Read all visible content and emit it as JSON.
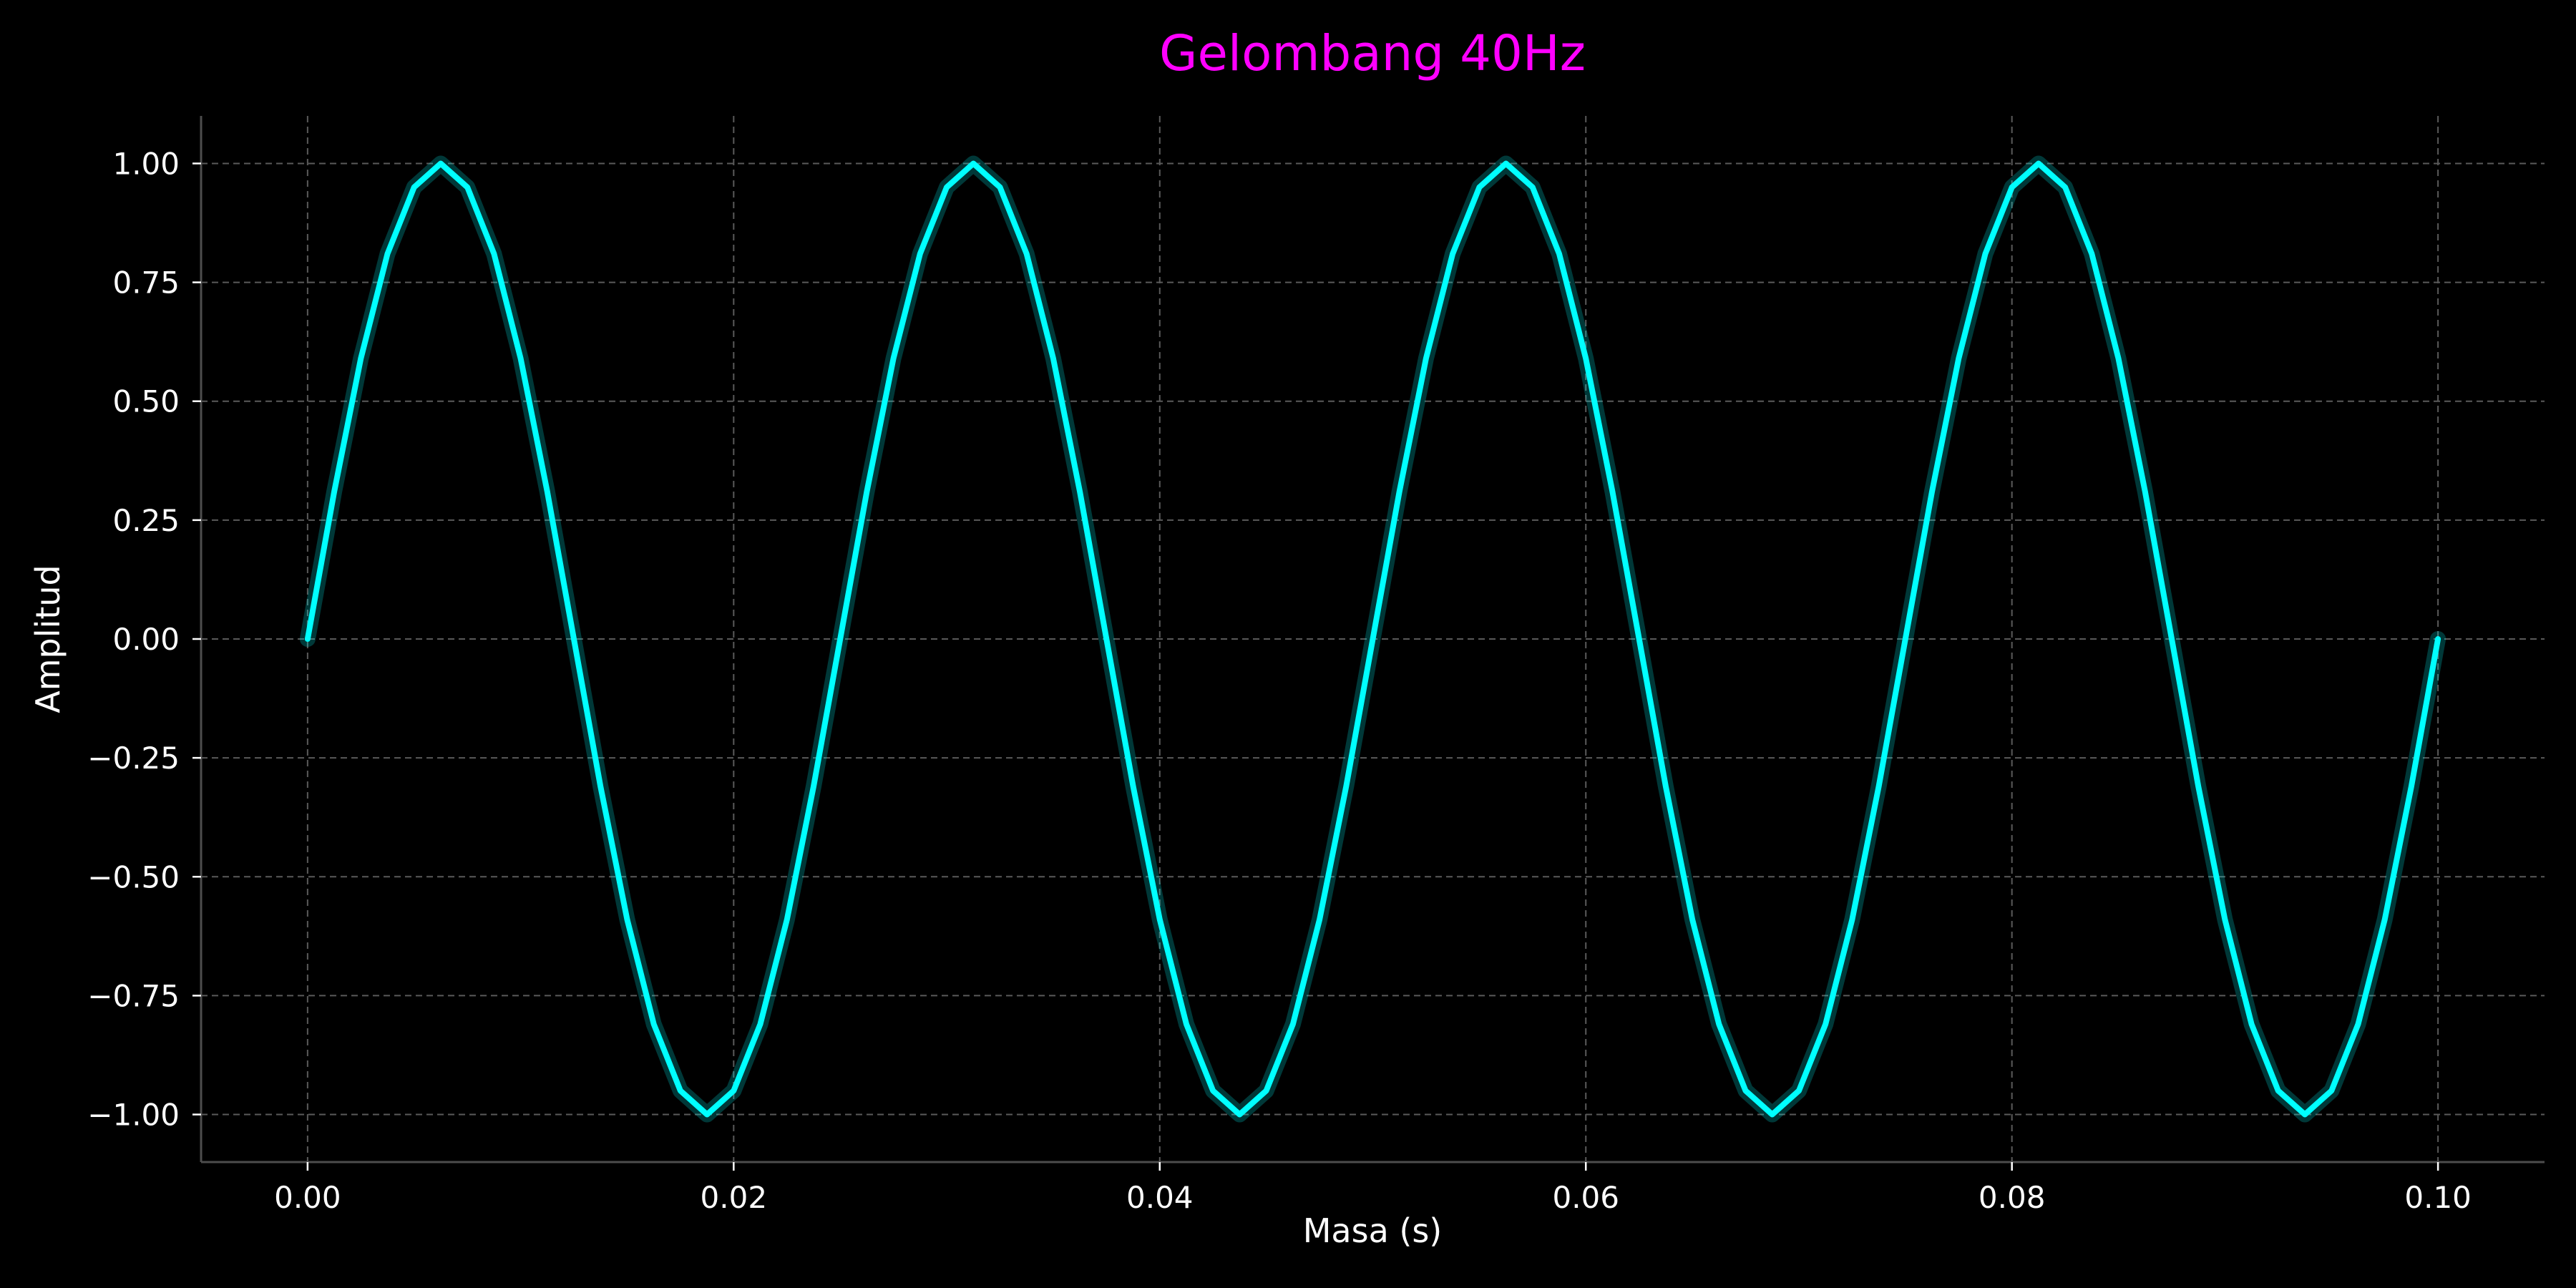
{
  "chart_data": {
    "type": "line",
    "title": "Gelombang 40Hz",
    "xlabel": "Masa (s)",
    "ylabel": "Amplitud",
    "xlim": [
      -0.005,
      0.105
    ],
    "ylim": [
      -1.1,
      1.1
    ],
    "x_ticks": [
      0.0,
      0.02,
      0.04,
      0.06,
      0.08,
      0.1
    ],
    "x_tick_labels": [
      "0.00",
      "0.02",
      "0.04",
      "0.06",
      "0.08",
      "0.10"
    ],
    "y_ticks": [
      1.0,
      0.75,
      0.5,
      0.25,
      0.0,
      -0.25,
      -0.5,
      -0.75,
      -1.0
    ],
    "y_tick_labels": [
      "1.00",
      "0.75",
      "0.50",
      "0.25",
      "0.00",
      "−0.25",
      "−0.50",
      "−0.75",
      "−1.00"
    ],
    "grid": true,
    "series": [
      {
        "x": [
          0.0,
          0.00125,
          0.0025,
          0.00375,
          0.005,
          0.00625,
          0.0075,
          0.00875,
          0.01,
          0.01125,
          0.0125,
          0.01375,
          0.015,
          0.01625,
          0.0175,
          0.01875,
          0.02,
          0.02125,
          0.0225,
          0.02375,
          0.025,
          0.02625,
          0.0275,
          0.02875,
          0.03,
          0.03125,
          0.0325,
          0.03375,
          0.035,
          0.03625,
          0.0375,
          0.03875,
          0.04,
          0.04125,
          0.0425,
          0.04375,
          0.045,
          0.04625,
          0.0475,
          0.04875,
          0.05,
          0.05125,
          0.0525,
          0.05375,
          0.055,
          0.05625,
          0.0575,
          0.05875,
          0.06,
          0.06125,
          0.0625,
          0.06375,
          0.065,
          0.06625,
          0.0675,
          0.06875,
          0.07,
          0.07125,
          0.0725,
          0.07375,
          0.075,
          0.07625,
          0.0775,
          0.07875,
          0.08,
          0.08125,
          0.0825,
          0.08375,
          0.085,
          0.08625,
          0.0875,
          0.08875,
          0.09,
          0.09125,
          0.0925,
          0.09375,
          0.095,
          0.09625,
          0.0975,
          0.09875,
          0.1
        ],
        "y": [
          0.0,
          0.31,
          0.59,
          0.81,
          0.95,
          1.0,
          0.95,
          0.81,
          0.59,
          0.31,
          0.0,
          -0.31,
          -0.59,
          -0.81,
          -0.95,
          -1.0,
          -0.95,
          -0.81,
          -0.59,
          -0.31,
          0.0,
          0.31,
          0.59,
          0.81,
          0.95,
          1.0,
          0.95,
          0.81,
          0.59,
          0.31,
          0.0,
          -0.31,
          -0.59,
          -0.81,
          -0.95,
          -1.0,
          -0.95,
          -0.81,
          -0.59,
          -0.31,
          0.0,
          0.31,
          0.59,
          0.81,
          0.95,
          1.0,
          0.95,
          0.81,
          0.59,
          0.31,
          0.0,
          -0.31,
          -0.59,
          -0.81,
          -0.95,
          -1.0,
          -0.95,
          -0.81,
          -0.59,
          -0.31,
          0.0,
          0.31,
          0.59,
          0.81,
          0.95,
          1.0,
          0.95,
          0.81,
          0.59,
          0.31,
          0.0,
          -0.31,
          -0.59,
          -0.81,
          -0.95,
          -1.0,
          -0.95,
          -0.81,
          -0.59,
          -0.31,
          0.0
        ],
        "color": "#00ffff"
      }
    ],
    "colors": {
      "background": "#000000",
      "title": "#ff00ff",
      "line": "#00ffff",
      "text": "#ffffff"
    }
  }
}
